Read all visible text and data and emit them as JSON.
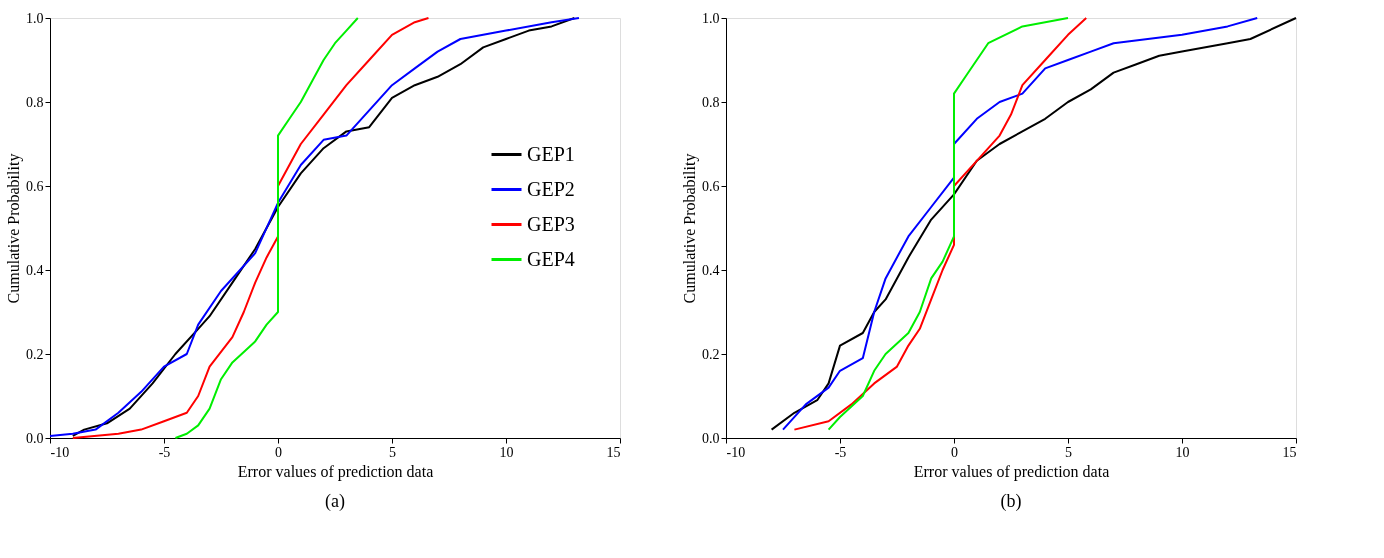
{
  "chart_data": [
    {
      "type": "line",
      "xlabel": "Error values of prediction data",
      "ylabel": "Cumulative Probability",
      "annotations": [
        "(a)"
      ],
      "legend": "right",
      "grid": false,
      "line_style": "solid",
      "marker": "none",
      "xlim": [
        -10,
        15
      ],
      "xticks": [
        -10,
        -5,
        0,
        5,
        10,
        15
      ],
      "ylim": [
        0,
        1
      ],
      "yticks": [
        {
          "value": 0,
          "label": "0.0"
        },
        {
          "value": 0.2,
          "label": "0.2"
        },
        {
          "value": 0.4,
          "label": "0.4"
        },
        {
          "value": 0.6,
          "label": "0.6"
        },
        {
          "value": 0.8,
          "label": "0.8"
        },
        {
          "value": 1,
          "label": "1.0"
        }
      ],
      "series": [
        {
          "name": "GEP1",
          "color": "#000000",
          "x": [
            -9,
            -8.5,
            -7.5,
            -6.5,
            -5.5,
            -4.5,
            -3.5,
            -3,
            -2,
            -1,
            0,
            1,
            2,
            3,
            4,
            5,
            6,
            7,
            8,
            9,
            10,
            11,
            12,
            13
          ],
          "values": [
            0.005,
            0.02,
            0.035,
            0.07,
            0.13,
            0.2,
            0.26,
            0.29,
            0.37,
            0.45,
            0.55,
            0.63,
            0.69,
            0.73,
            0.74,
            0.81,
            0.84,
            0.86,
            0.89,
            0.93,
            0.95,
            0.97,
            0.98,
            1.0
          ]
        },
        {
          "name": "GEP2",
          "color": "#0000ff",
          "x": [
            -10,
            -9,
            -8,
            -7,
            -6,
            -5,
            -4,
            -3.5,
            -2.5,
            -1,
            0,
            1,
            2,
            3,
            4,
            5,
            6,
            7,
            8,
            10,
            12,
            13.2
          ],
          "values": [
            0.005,
            0.01,
            0.02,
            0.06,
            0.11,
            0.17,
            0.2,
            0.27,
            0.35,
            0.44,
            0.56,
            0.65,
            0.71,
            0.72,
            0.78,
            0.84,
            0.88,
            0.92,
            0.95,
            0.97,
            0.99,
            1.0
          ]
        },
        {
          "name": "GEP3",
          "color": "#ff0000",
          "x": [
            -9,
            -7,
            -6,
            -5,
            -4,
            -3.5,
            -3,
            -2,
            -1.5,
            -1,
            -0.5,
            0,
            0,
            0.5,
            1,
            2,
            3,
            4,
            5,
            6,
            6.6
          ],
          "values": [
            0.0,
            0.01,
            0.02,
            0.04,
            0.06,
            0.1,
            0.17,
            0.24,
            0.3,
            0.37,
            0.43,
            0.48,
            0.6,
            0.65,
            0.7,
            0.77,
            0.84,
            0.9,
            0.96,
            0.99,
            1.0
          ]
        },
        {
          "name": "GEP4",
          "color": "#00ee00",
          "x": [
            -4.5,
            -4,
            -3.5,
            -3,
            -2.5,
            -2,
            -1,
            -0.5,
            0,
            0,
            0.5,
            1,
            1.5,
            2,
            2.5,
            3,
            3.5
          ],
          "values": [
            0.0,
            0.01,
            0.03,
            0.07,
            0.14,
            0.18,
            0.23,
            0.27,
            0.3,
            0.72,
            0.76,
            0.8,
            0.85,
            0.9,
            0.94,
            0.97,
            1.0
          ]
        }
      ]
    },
    {
      "type": "line",
      "xlabel": "Error values of prediction data",
      "ylabel": "Cumulative Probability",
      "annotations": [
        "(b)"
      ],
      "legend": "right",
      "grid": false,
      "line_style": "solid",
      "marker": "none",
      "xlim": [
        -10,
        15
      ],
      "xticks": [
        -10,
        -5,
        0,
        5,
        10,
        15
      ],
      "ylim": [
        0,
        1
      ],
      "yticks": [
        {
          "value": 0,
          "label": "0.0"
        },
        {
          "value": 0.2,
          "label": "0.2"
        },
        {
          "value": 0.4,
          "label": "0.4"
        },
        {
          "value": 0.6,
          "label": "0.6"
        },
        {
          "value": 0.8,
          "label": "0.8"
        },
        {
          "value": 1,
          "label": "1.0"
        }
      ],
      "series": [
        {
          "name": "GEP1",
          "color": "#000000",
          "x": [
            -8,
            -7,
            -6,
            -5.5,
            -5,
            -4,
            -3.5,
            -3,
            -2.5,
            -2,
            -1,
            0,
            1,
            2,
            3,
            4,
            5,
            6,
            7,
            8,
            9,
            10,
            12,
            13,
            15
          ],
          "values": [
            0.02,
            0.06,
            0.09,
            0.13,
            0.22,
            0.25,
            0.3,
            0.33,
            0.38,
            0.43,
            0.52,
            0.58,
            0.66,
            0.7,
            0.73,
            0.76,
            0.8,
            0.83,
            0.87,
            0.89,
            0.91,
            0.92,
            0.94,
            0.95,
            1.0
          ]
        },
        {
          "name": "GEP2",
          "color": "#0000ff",
          "x": [
            -7.5,
            -6.5,
            -5.5,
            -5,
            -4,
            -3.5,
            -3,
            -2,
            -1,
            0,
            0,
            1,
            2,
            3,
            4,
            5,
            6,
            7,
            10,
            12,
            13.3
          ],
          "values": [
            0.02,
            0.08,
            0.12,
            0.16,
            0.19,
            0.3,
            0.38,
            0.48,
            0.55,
            0.62,
            0.7,
            0.76,
            0.8,
            0.82,
            0.88,
            0.9,
            0.92,
            0.94,
            0.96,
            0.98,
            1.0
          ]
        },
        {
          "name": "GEP3",
          "color": "#ff0000",
          "x": [
            -7,
            -5.5,
            -4.5,
            -3.5,
            -2.5,
            -2,
            -1.5,
            -1,
            -0.5,
            0,
            0,
            1,
            2,
            2.5,
            3,
            4,
            5,
            5.8
          ],
          "values": [
            0.02,
            0.04,
            0.08,
            0.13,
            0.17,
            0.22,
            0.26,
            0.33,
            0.4,
            0.46,
            0.6,
            0.66,
            0.72,
            0.77,
            0.84,
            0.9,
            0.96,
            1.0
          ]
        },
        {
          "name": "GEP4",
          "color": "#00ee00",
          "x": [
            -5.5,
            -5,
            -4,
            -3.5,
            -3,
            -2,
            -1.5,
            -1,
            -0.5,
            0,
            0,
            0.5,
            1,
            1.5,
            3,
            5
          ],
          "values": [
            0.02,
            0.05,
            0.1,
            0.16,
            0.2,
            0.25,
            0.3,
            0.38,
            0.42,
            0.48,
            0.82,
            0.86,
            0.9,
            0.94,
            0.98,
            1.0
          ]
        }
      ]
    }
  ]
}
